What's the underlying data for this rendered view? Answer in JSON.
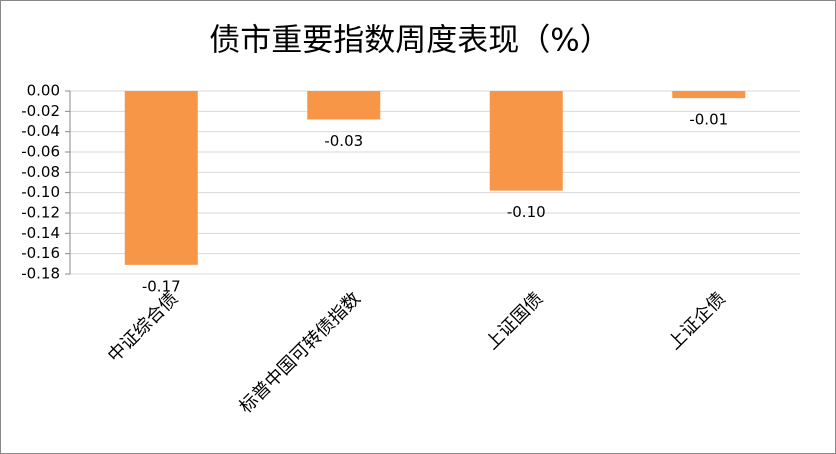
{
  "chart_data": {
    "type": "bar",
    "title": "债市重要指数周度表现（%）",
    "categories": [
      "中证综合债",
      "标普中国可转债指数",
      "上证国债",
      "上证企债"
    ],
    "values": [
      -0.171,
      -0.028,
      -0.098,
      -0.007
    ],
    "value_labels": [
      "-0.17",
      "-0.03",
      "-0.10",
      "-0.01"
    ],
    "color": "#f79646",
    "ylim": [
      -0.18,
      0
    ],
    "yticks": [
      {
        "value": 0,
        "label": "0.00"
      },
      {
        "value": -0.02,
        "label": "-0.02"
      },
      {
        "value": -0.04,
        "label": "-0.04"
      },
      {
        "value": -0.06,
        "label": "-0.06"
      },
      {
        "value": -0.08,
        "label": "-0.08"
      },
      {
        "value": -0.1,
        "label": "-0.10"
      },
      {
        "value": -0.12,
        "label": "-0.12"
      },
      {
        "value": -0.14,
        "label": "-0.14"
      },
      {
        "value": -0.16,
        "label": "-0.16"
      },
      {
        "value": -0.18,
        "label": "-0.18"
      }
    ],
    "grid": true
  }
}
